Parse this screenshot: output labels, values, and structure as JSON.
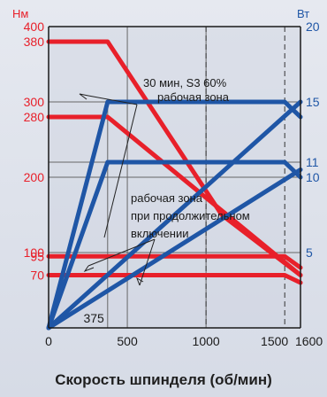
{
  "chart_data": {
    "type": "line",
    "title": "",
    "xlabel": "Скорость шпинделя (об/мин)",
    "y_left_unit": "Нм",
    "y_right_unit": "Вт",
    "xlim": [
      0,
      1600
    ],
    "ylim_left": [
      0,
      400
    ],
    "ylim_right": [
      0,
      20
    ],
    "x_ticks": [
      {
        "v": 0,
        "label": "0"
      },
      {
        "v": 500,
        "label": "500"
      },
      {
        "v": 1000,
        "label": "1000"
      },
      {
        "v": 1500,
        "label": "1500"
      },
      {
        "v": 1600,
        "label": "1600"
      }
    ],
    "y_left_ticks": [
      {
        "v": 400,
        "label": "400"
      },
      {
        "v": 380,
        "label": "380"
      },
      {
        "v": 300,
        "label": "300"
      },
      {
        "v": 280,
        "label": "280"
      },
      {
        "v": 200,
        "label": "200"
      },
      {
        "v": 100,
        "label": "100"
      },
      {
        "v": 95,
        "label": "95"
      },
      {
        "v": 70,
        "label": "70"
      }
    ],
    "y_right_ticks": [
      {
        "v": 20,
        "label": "20"
      },
      {
        "v": 15,
        "label": "15"
      },
      {
        "v": 11,
        "label": "11"
      },
      {
        "v": 10,
        "label": "10"
      },
      {
        "v": 5,
        "label": "5"
      }
    ],
    "grid_solid_x": [
      500,
      1000
    ],
    "grid_dashed_x": [
      1000,
      1500
    ],
    "grid_h_left": [
      300,
      200,
      100
    ],
    "marker_x": {
      "v": 375,
      "label": "375"
    },
    "annotations": {
      "s3_line1": "30 мин, S3 60%",
      "s3_line2": "рабочая зона",
      "cont_line1": "рабочая зона",
      "cont_line2": "при продолжительном",
      "cont_line3": "включении"
    },
    "torque_series": [
      {
        "points": [
          [
            0,
            380
          ],
          [
            375,
            380
          ],
          [
            1100,
            150
          ],
          [
            1600,
            70
          ]
        ]
      },
      {
        "points": [
          [
            0,
            280
          ],
          [
            375,
            280
          ],
          [
            1600,
            70
          ]
        ]
      },
      {
        "points": [
          [
            0,
            95
          ],
          [
            1500,
            95
          ],
          [
            1600,
            80
          ]
        ]
      },
      {
        "points": [
          [
            0,
            70
          ],
          [
            1500,
            70
          ],
          [
            1600,
            60
          ]
        ]
      }
    ],
    "power_series": [
      {
        "points": [
          [
            0,
            0
          ],
          [
            375,
            15
          ],
          [
            1500,
            15
          ],
          [
            1600,
            14
          ]
        ]
      },
      {
        "points": [
          [
            0,
            0
          ],
          [
            375,
            11
          ],
          [
            1500,
            11
          ],
          [
            1600,
            10
          ]
        ]
      },
      {
        "points": [
          [
            0,
            0
          ],
          [
            1600,
            15
          ]
        ]
      },
      {
        "points": [
          [
            0,
            0
          ],
          [
            1600,
            10.5
          ]
        ]
      }
    ],
    "colors": {
      "torque": "#e8202a",
      "power": "#1f56a6",
      "axis": "#1a1a1a",
      "grid": "#666666"
    }
  }
}
